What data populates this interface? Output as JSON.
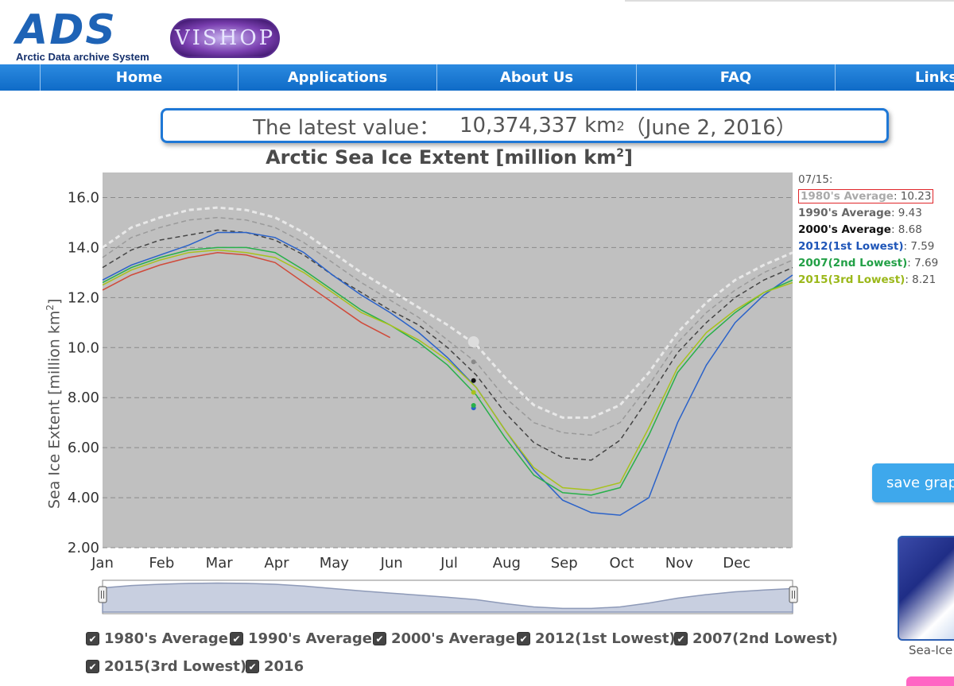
{
  "header": {
    "logo_letters": "ADS",
    "logo_subtitle": "Arctic Data archive System",
    "vishop_logo": "VISHOP"
  },
  "nav": {
    "items": [
      {
        "label": ""
      },
      {
        "label": "Home"
      },
      {
        "label": "Applications"
      },
      {
        "label": "About Us"
      },
      {
        "label": "FAQ"
      },
      {
        "label": "Links"
      }
    ]
  },
  "latest": {
    "prefix": "The latest value：",
    "value": "10,374,337 km",
    "exponent": "2",
    "date": "（June 2, 2016）"
  },
  "chart_data": {
    "type": "line",
    "title": "Arctic Sea Ice Extent [million km",
    "title_exponent": "2",
    "title_suffix": "]",
    "ylabel": "Sea Ice Extent [million km",
    "ylabel_exponent": "2",
    "ylabel_suffix": "]",
    "ylim": [
      2.0,
      17.0
    ],
    "yticks": [
      2.0,
      4.0,
      6.0,
      8.0,
      10.0,
      12.0,
      14.0,
      16.0
    ],
    "ytick_labels": [
      "2.00",
      "4.00",
      "6.00",
      "8.00",
      "10.0",
      "12.0",
      "14.0",
      "16.0"
    ],
    "x_months": [
      "Jan",
      "Feb",
      "Mar",
      "Apr",
      "May",
      "Jun",
      "Jul",
      "Aug",
      "Sep",
      "Oct",
      "Nov",
      "Dec"
    ],
    "xlim": [
      0,
      12
    ],
    "grid": true,
    "series": [
      {
        "name": "1980's Average",
        "color": "#e8e8e8",
        "dash": true,
        "x": [
          0,
          0.5,
          1,
          1.5,
          2,
          2.5,
          3,
          3.5,
          4,
          4.5,
          5,
          5.5,
          6,
          6.5,
          7,
          7.5,
          8,
          8.5,
          9,
          9.5,
          10,
          10.5,
          11,
          11.5,
          12
        ],
        "y": [
          14.0,
          14.8,
          15.2,
          15.5,
          15.6,
          15.5,
          15.2,
          14.6,
          13.8,
          13.0,
          12.3,
          11.6,
          10.9,
          10.1,
          8.8,
          7.7,
          7.2,
          7.2,
          7.7,
          9.0,
          10.6,
          11.8,
          12.7,
          13.3,
          13.8
        ]
      },
      {
        "name": "1990's Average",
        "color": "#9a9a9a",
        "dash": true,
        "x": [
          0,
          0.5,
          1,
          1.5,
          2,
          2.5,
          3,
          3.5,
          4,
          4.5,
          5,
          5.5,
          6,
          6.5,
          7,
          7.5,
          8,
          8.5,
          9,
          9.5,
          10,
          10.5,
          11,
          11.5,
          12
        ],
        "y": [
          13.6,
          14.4,
          14.8,
          15.1,
          15.2,
          15.1,
          14.8,
          14.2,
          13.4,
          12.6,
          11.9,
          11.2,
          10.3,
          9.4,
          8.0,
          7.0,
          6.6,
          6.5,
          7.0,
          8.5,
          10.2,
          11.4,
          12.3,
          13.0,
          13.5
        ]
      },
      {
        "name": "2000's Average",
        "color": "#444444",
        "dash": true,
        "x": [
          0,
          0.5,
          1,
          1.5,
          2,
          2.5,
          3,
          3.5,
          4,
          4.5,
          5,
          5.5,
          6,
          6.5,
          7,
          7.5,
          8,
          8.5,
          9,
          9.5,
          10,
          10.5,
          11,
          11.5,
          12
        ],
        "y": [
          13.2,
          13.9,
          14.3,
          14.5,
          14.7,
          14.6,
          14.3,
          13.7,
          12.9,
          12.2,
          11.5,
          10.9,
          10.0,
          8.9,
          7.4,
          6.2,
          5.6,
          5.5,
          6.3,
          8.0,
          9.8,
          11.0,
          12.0,
          12.7,
          13.2
        ]
      },
      {
        "name": "2012(1st Lowest)",
        "color": "#2a62c9",
        "dash": false,
        "x": [
          0,
          0.5,
          1,
          1.5,
          2,
          2.5,
          3,
          3.5,
          4,
          4.5,
          5,
          5.5,
          6,
          6.5,
          7,
          7.5,
          8,
          8.5,
          9,
          9.5,
          10,
          10.5,
          11,
          11.5,
          12
        ],
        "y": [
          12.7,
          13.3,
          13.7,
          14.1,
          14.6,
          14.6,
          14.4,
          13.8,
          12.9,
          12.1,
          11.4,
          10.6,
          9.6,
          8.4,
          6.7,
          5.1,
          3.9,
          3.4,
          3.3,
          4.0,
          7.0,
          9.3,
          11.0,
          12.1,
          12.9
        ]
      },
      {
        "name": "2007(2nd Lowest)",
        "color": "#28b04a",
        "dash": false,
        "x": [
          0,
          0.5,
          1,
          1.5,
          2,
          2.5,
          3,
          3.5,
          4,
          4.5,
          5,
          5.5,
          6,
          6.5,
          7,
          7.5,
          8,
          8.5,
          9,
          9.5,
          10,
          10.5,
          11,
          11.5,
          12
        ],
        "y": [
          12.6,
          13.2,
          13.6,
          13.9,
          14.0,
          14.0,
          13.8,
          13.1,
          12.3,
          11.5,
          10.9,
          10.2,
          9.3,
          8.1,
          6.4,
          4.9,
          4.2,
          4.1,
          4.4,
          6.5,
          9.0,
          10.4,
          11.4,
          12.2,
          12.7
        ]
      },
      {
        "name": "2015(3rd Lowest)",
        "color": "#a8c21c",
        "dash": false,
        "x": [
          0,
          0.5,
          1,
          1.5,
          2,
          2.5,
          3,
          3.5,
          4,
          4.5,
          5,
          5.5,
          6,
          6.5,
          7,
          7.5,
          8,
          8.5,
          9,
          9.5,
          10,
          10.5,
          11,
          11.5,
          12
        ],
        "y": [
          12.5,
          13.1,
          13.5,
          13.8,
          13.9,
          13.8,
          13.6,
          13.0,
          12.2,
          11.4,
          10.9,
          10.3,
          9.5,
          8.4,
          6.7,
          5.2,
          4.4,
          4.3,
          4.6,
          6.8,
          9.2,
          10.6,
          11.5,
          12.2,
          12.6
        ]
      },
      {
        "name": "2016",
        "color": "#d04a3a",
        "dash": false,
        "x": [
          0,
          0.5,
          1,
          1.5,
          2,
          2.5,
          3,
          3.5,
          4,
          4.5,
          5
        ],
        "y": [
          12.3,
          12.9,
          13.3,
          13.6,
          13.8,
          13.7,
          13.4,
          12.6,
          11.8,
          11.0,
          10.4
        ]
      }
    ],
    "markers_0715": [
      10.23,
      9.43,
      8.68,
      7.59,
      7.69,
      8.21
    ],
    "tooltip": {
      "date": "07/15:",
      "rows": [
        {
          "name": "1980's Average",
          "value": ": 10.23",
          "color": "#aaaaaa"
        },
        {
          "name": "1990's Average",
          "value": ": 9.43",
          "color": "#666666"
        },
        {
          "name": "2000's Average",
          "value": ": 8.68",
          "color": "#111111"
        },
        {
          "name": "2012(1st Lowest)",
          "value": ": 7.59",
          "color": "#1f56b8"
        },
        {
          "name": "2007(2nd Lowest)",
          "value": ": 7.69",
          "color": "#22a046"
        },
        {
          "name": "2015(3rd Lowest)",
          "value": ": 8.21",
          "color": "#9bb81a"
        }
      ]
    }
  },
  "save_button": "save grap",
  "legend": [
    "1980's Average",
    "1990's Average",
    "2000's Average",
    "2012(1st Lowest)",
    "2007(2nd Lowest)",
    "2015(3rd Lowest)",
    "2016"
  ],
  "legend_check": "✔",
  "map_caption": "Sea-Ice"
}
